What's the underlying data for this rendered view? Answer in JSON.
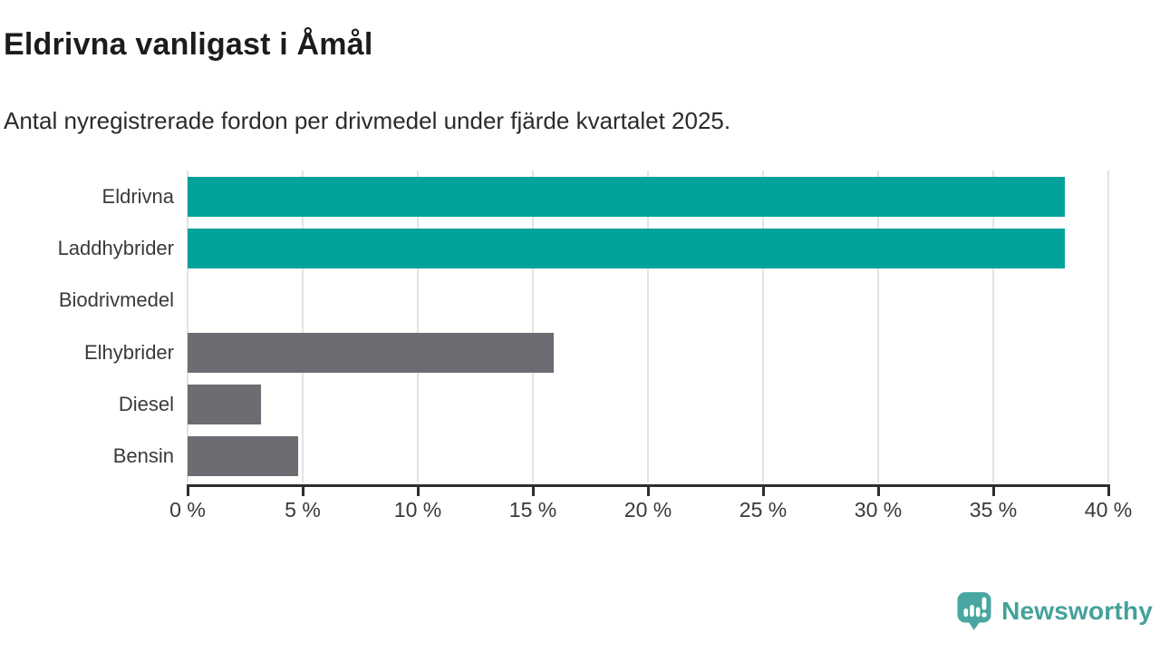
{
  "title": "Eldrivna vanligast i Åmål",
  "subtitle": "Antal nyregistrerade fordon per drivmedel under fjärde kvartalet 2025.",
  "branding": {
    "logo_text": "Newsworthy",
    "logo_color": "#44a19b"
  },
  "colors": {
    "highlight_teal": "#00a29a",
    "neutral_gray": "#6c6c72",
    "gridline": "#e3e3e3",
    "axis": "#2e2e2e",
    "label_text": "#3a3a3a",
    "title_text": "#1c1c1c"
  },
  "chart_data": {
    "type": "bar",
    "orientation": "horizontal",
    "title": "Eldrivna vanligast i Åmål",
    "subtitle": "Antal nyregistrerade fordon per drivmedel under fjärde kvartalet 2025.",
    "categories": [
      "Eldrivna",
      "Laddhybrider",
      "Biodrivmedel",
      "Elhybrider",
      "Diesel",
      "Bensin"
    ],
    "values": [
      38.1,
      38.1,
      0,
      15.9,
      3.2,
      4.8
    ],
    "bar_colors": [
      "#00a29a",
      "#00a29a",
      "#00a29a",
      "#6c6c72",
      "#6c6c72",
      "#6c6c72"
    ],
    "value_unit": "%",
    "xlabel": "",
    "ylabel": "",
    "xlim": [
      0,
      40
    ],
    "x_ticks": [
      0,
      5,
      10,
      15,
      20,
      25,
      30,
      35,
      40
    ],
    "x_tick_labels": [
      "0 %",
      "5 %",
      "10 %",
      "15 %",
      "20 %",
      "25 %",
      "30 %",
      "35 %",
      "40 %"
    ],
    "grid": true,
    "legend": false
  }
}
